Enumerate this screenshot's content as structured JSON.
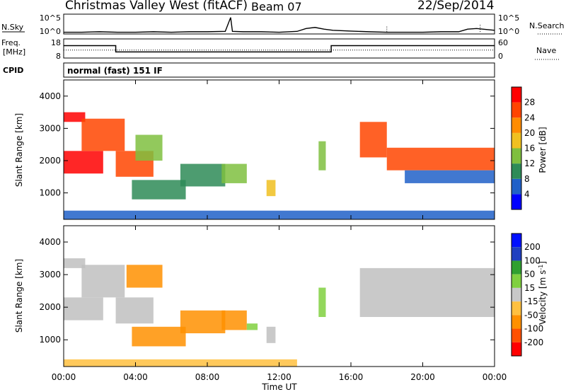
{
  "header": {
    "title": "Christmas Valley West (fitACF)",
    "beam": "Beam 07",
    "date": "22/Sep/2014"
  },
  "colors": {
    "power_scale": [
      "#0000ff",
      "#2060c8",
      "#2e8b57",
      "#7fbf3f",
      "#f0c020",
      "#ff8c00",
      "#ff4500",
      "#ff0000"
    ],
    "velocity_scale": [
      "#ff0000",
      "#ff5000",
      "#ff9000",
      "#ffc040",
      "#c8c8c8",
      "#80d040",
      "#30a030",
      "#2040c0",
      "#0010ff"
    ],
    "ground_scatter": "#c0c0c0"
  },
  "chart_data": [
    {
      "type": "line",
      "panel": "N.Sky / N.Search",
      "left_label": "N.Sky",
      "right_label": "N.Search",
      "left_ticks": [
        "10^5",
        "10^0"
      ],
      "right_ticks": [
        "10^5",
        "10^0"
      ],
      "scale": "log",
      "ylim": [
        1,
        100000
      ],
      "series": [
        {
          "name": "N.Sky",
          "style": "solid",
          "x": [
            0,
            1,
            2,
            3,
            4,
            5,
            6,
            7,
            8,
            9,
            9.3,
            9.4,
            10,
            11,
            12,
            13,
            13.5,
            14,
            14.5,
            15,
            16,
            17,
            18,
            19,
            20,
            21,
            22,
            22.5,
            23,
            24
          ],
          "values": [
            3,
            3,
            4,
            3,
            3,
            4,
            3,
            4,
            4,
            5,
            30000,
            5,
            4,
            4,
            3,
            5,
            30,
            60,
            20,
            10,
            6,
            4,
            3,
            3,
            3,
            4,
            4,
            20,
            30,
            10
          ]
        },
        {
          "name": "N.Search",
          "style": "dotted",
          "x": [
            18,
            23.2
          ],
          "values": [
            100,
            300
          ]
        }
      ]
    },
    {
      "type": "line",
      "panel": "Freq. / Nave",
      "left_label": "Freq. [MHz]",
      "right_label": "Nave",
      "left_ticks": [
        "18",
        "8"
      ],
      "right_ticks": [
        "60",
        "0"
      ],
      "ylim": [
        8,
        18
      ],
      "y2lim": [
        0,
        60
      ],
      "series": [
        {
          "name": "Freq.",
          "style": "solid",
          "x": [
            0,
            2.9,
            2.9,
            14.9,
            14.9,
            24
          ],
          "values": [
            14.5,
            14.5,
            11.2,
            11.2,
            14.5,
            14.5
          ]
        },
        {
          "name": "Nave",
          "style": "dotted",
          "x": [
            0,
            24
          ],
          "values": [
            25,
            25
          ]
        }
      ]
    },
    {
      "type": "heatmap",
      "panel": "CPID",
      "label": "CPID",
      "text": "normal (fast) 151 IF"
    },
    {
      "type": "heatmap",
      "quantity": "Power",
      "ylabel": "Slant Range [km]",
      "yticks": [
        1000,
        2000,
        3000,
        4000
      ],
      "ylim": [
        180,
        4500
      ],
      "xlim": [
        0,
        24
      ],
      "colorbar": {
        "label": "Power [dB]",
        "ticks": [
          4,
          8,
          12,
          16,
          20,
          24,
          28
        ]
      },
      "regions": [
        {
          "t": [
            0,
            2.2
          ],
          "r": [
            1600,
            2300
          ],
          "value": 28
        },
        {
          "t": [
            0,
            1.2
          ],
          "r": [
            3200,
            3500
          ],
          "value": 28
        },
        {
          "t": [
            1.0,
            3.4
          ],
          "r": [
            2300,
            3300
          ],
          "value": 24
        },
        {
          "t": [
            2.9,
            5.0
          ],
          "r": [
            1500,
            2300
          ],
          "value": 26
        },
        {
          "t": [
            4.0,
            5.5
          ],
          "r": [
            2000,
            2800
          ],
          "value": 14
        },
        {
          "t": [
            3.8,
            6.8
          ],
          "r": [
            800,
            1400
          ],
          "value": 10
        },
        {
          "t": [
            6.5,
            9.0
          ],
          "r": [
            1200,
            1900
          ],
          "value": 8
        },
        {
          "t": [
            8.8,
            10.2
          ],
          "r": [
            1300,
            1900
          ],
          "value": 12
        },
        {
          "t": [
            11.3,
            11.8
          ],
          "r": [
            900,
            1400
          ],
          "value": 18
        },
        {
          "t": [
            14.2,
            14.6
          ],
          "r": [
            1700,
            2600
          ],
          "value": 12
        },
        {
          "t": [
            16.5,
            18.0
          ],
          "r": [
            2100,
            3200
          ],
          "value": 24
        },
        {
          "t": [
            18.0,
            24.0
          ],
          "r": [
            1700,
            2400
          ],
          "value": 26
        },
        {
          "t": [
            19.0,
            24.0
          ],
          "r": [
            1300,
            1700
          ],
          "value": 6
        },
        {
          "t": [
            0,
            24.0
          ],
          "r": [
            180,
            450
          ],
          "value": 4
        }
      ]
    },
    {
      "type": "heatmap",
      "quantity": "Velocity",
      "ylabel": "Slant Range [km]",
      "yticks": [
        1000,
        2000,
        3000,
        4000
      ],
      "ylim": [
        180,
        4500
      ],
      "xlim": [
        0,
        24
      ],
      "xlabel": "Time UT",
      "xticks": [
        "00:00",
        "04:00",
        "08:00",
        "12:00",
        "16:00",
        "20:00",
        "00:00"
      ],
      "colorbar": {
        "label": "Velocity [m s^-1]",
        "ticks": [
          200,
          100,
          50,
          15,
          -15,
          -50,
          -100,
          -200
        ]
      },
      "regions": [
        {
          "t": [
            0,
            2.2
          ],
          "r": [
            1600,
            2300
          ],
          "value": 0
        },
        {
          "t": [
            0,
            1.2
          ],
          "r": [
            3200,
            3500
          ],
          "value": 0
        },
        {
          "t": [
            1.0,
            3.4
          ],
          "r": [
            2300,
            3300
          ],
          "value": 0
        },
        {
          "t": [
            2.9,
            5.0
          ],
          "r": [
            1500,
            2300
          ],
          "value": 0
        },
        {
          "t": [
            3.5,
            5.5
          ],
          "r": [
            2600,
            3300
          ],
          "value": -60
        },
        {
          "t": [
            3.8,
            6.8
          ],
          "r": [
            800,
            1400
          ],
          "value": -80
        },
        {
          "t": [
            6.5,
            9.0
          ],
          "r": [
            1200,
            1900
          ],
          "value": -90
        },
        {
          "t": [
            8.8,
            10.2
          ],
          "r": [
            1300,
            1900
          ],
          "value": -60
        },
        {
          "t": [
            10.2,
            10.8
          ],
          "r": [
            1300,
            1500
          ],
          "value": 40
        },
        {
          "t": [
            11.3,
            11.8
          ],
          "r": [
            900,
            1400
          ],
          "value": 0
        },
        {
          "t": [
            14.2,
            14.6
          ],
          "r": [
            1700,
            2600
          ],
          "value": 40
        },
        {
          "t": [
            16.5,
            24.0
          ],
          "r": [
            1700,
            3200
          ],
          "value": 0
        },
        {
          "t": [
            0,
            13.0
          ],
          "r": [
            180,
            400
          ],
          "value": -40
        }
      ]
    }
  ]
}
